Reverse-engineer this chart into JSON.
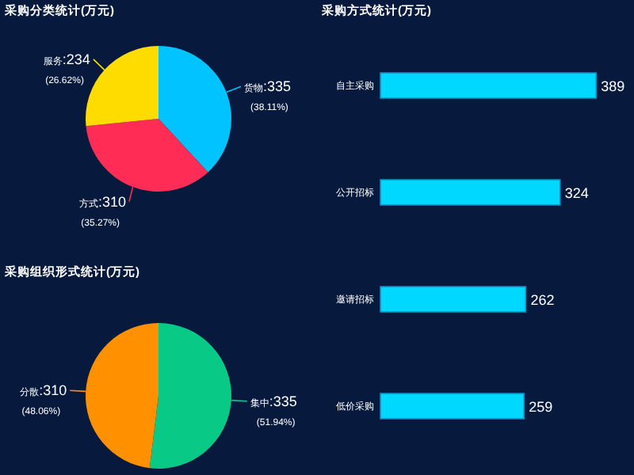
{
  "chart_data": [
    {
      "type": "pie",
      "title": "采购分类统计(万元)",
      "categories": [
        "货物",
        "方式",
        "服务"
      ],
      "values": [
        335,
        310,
        234
      ],
      "colors": [
        "#00c3ff",
        "#ff2d55",
        "#ffdc00"
      ],
      "value_labels": [
        ":335\n(38.11%)",
        ":310\n(35.27%)",
        ":234\n(26.62%)"
      ]
    },
    {
      "type": "bar",
      "orientation": "horizontal",
      "title": "采购方式统计(万元)",
      "categories": [
        "自主采购",
        "公开招标",
        "邀请招标",
        "低价采购"
      ],
      "values": [
        389,
        324,
        262,
        259
      ],
      "color": "#00d8ff",
      "data_labels": true
    },
    {
      "type": "pie",
      "title": "采购组织形式统计(万元)",
      "categories": [
        "集中",
        "分散"
      ],
      "values": [
        335,
        310
      ],
      "colors": [
        "#08c985",
        "#ff9000"
      ],
      "value_labels": [
        ":335\n(51.94%)",
        ":310\n(48.06%)"
      ]
    }
  ]
}
